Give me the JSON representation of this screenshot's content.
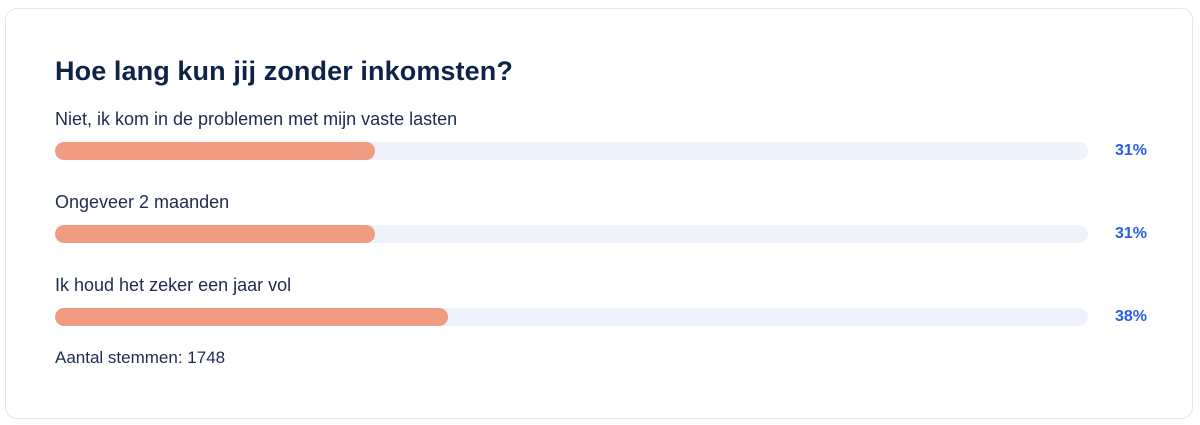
{
  "poll": {
    "question": "Hoe lang kun jij zonder inkomsten?",
    "options": [
      {
        "label": "Niet, ik kom in de problemen met mijn vaste lasten",
        "percent_text": "31%",
        "percent": 31
      },
      {
        "label": "Ongeveer 2 maanden",
        "percent_text": "31%",
        "percent": 31
      },
      {
        "label": "Ik houd het zeker een jaar vol",
        "percent_text": "38%",
        "percent": 38
      }
    ],
    "votes_text": "Aantal stemmen: 1748"
  },
  "colors": {
    "bar_fill": "#f09b82",
    "bar_track": "#eef2fb",
    "percent_text": "#2b5ee8",
    "title_text": "#0f2348"
  }
}
